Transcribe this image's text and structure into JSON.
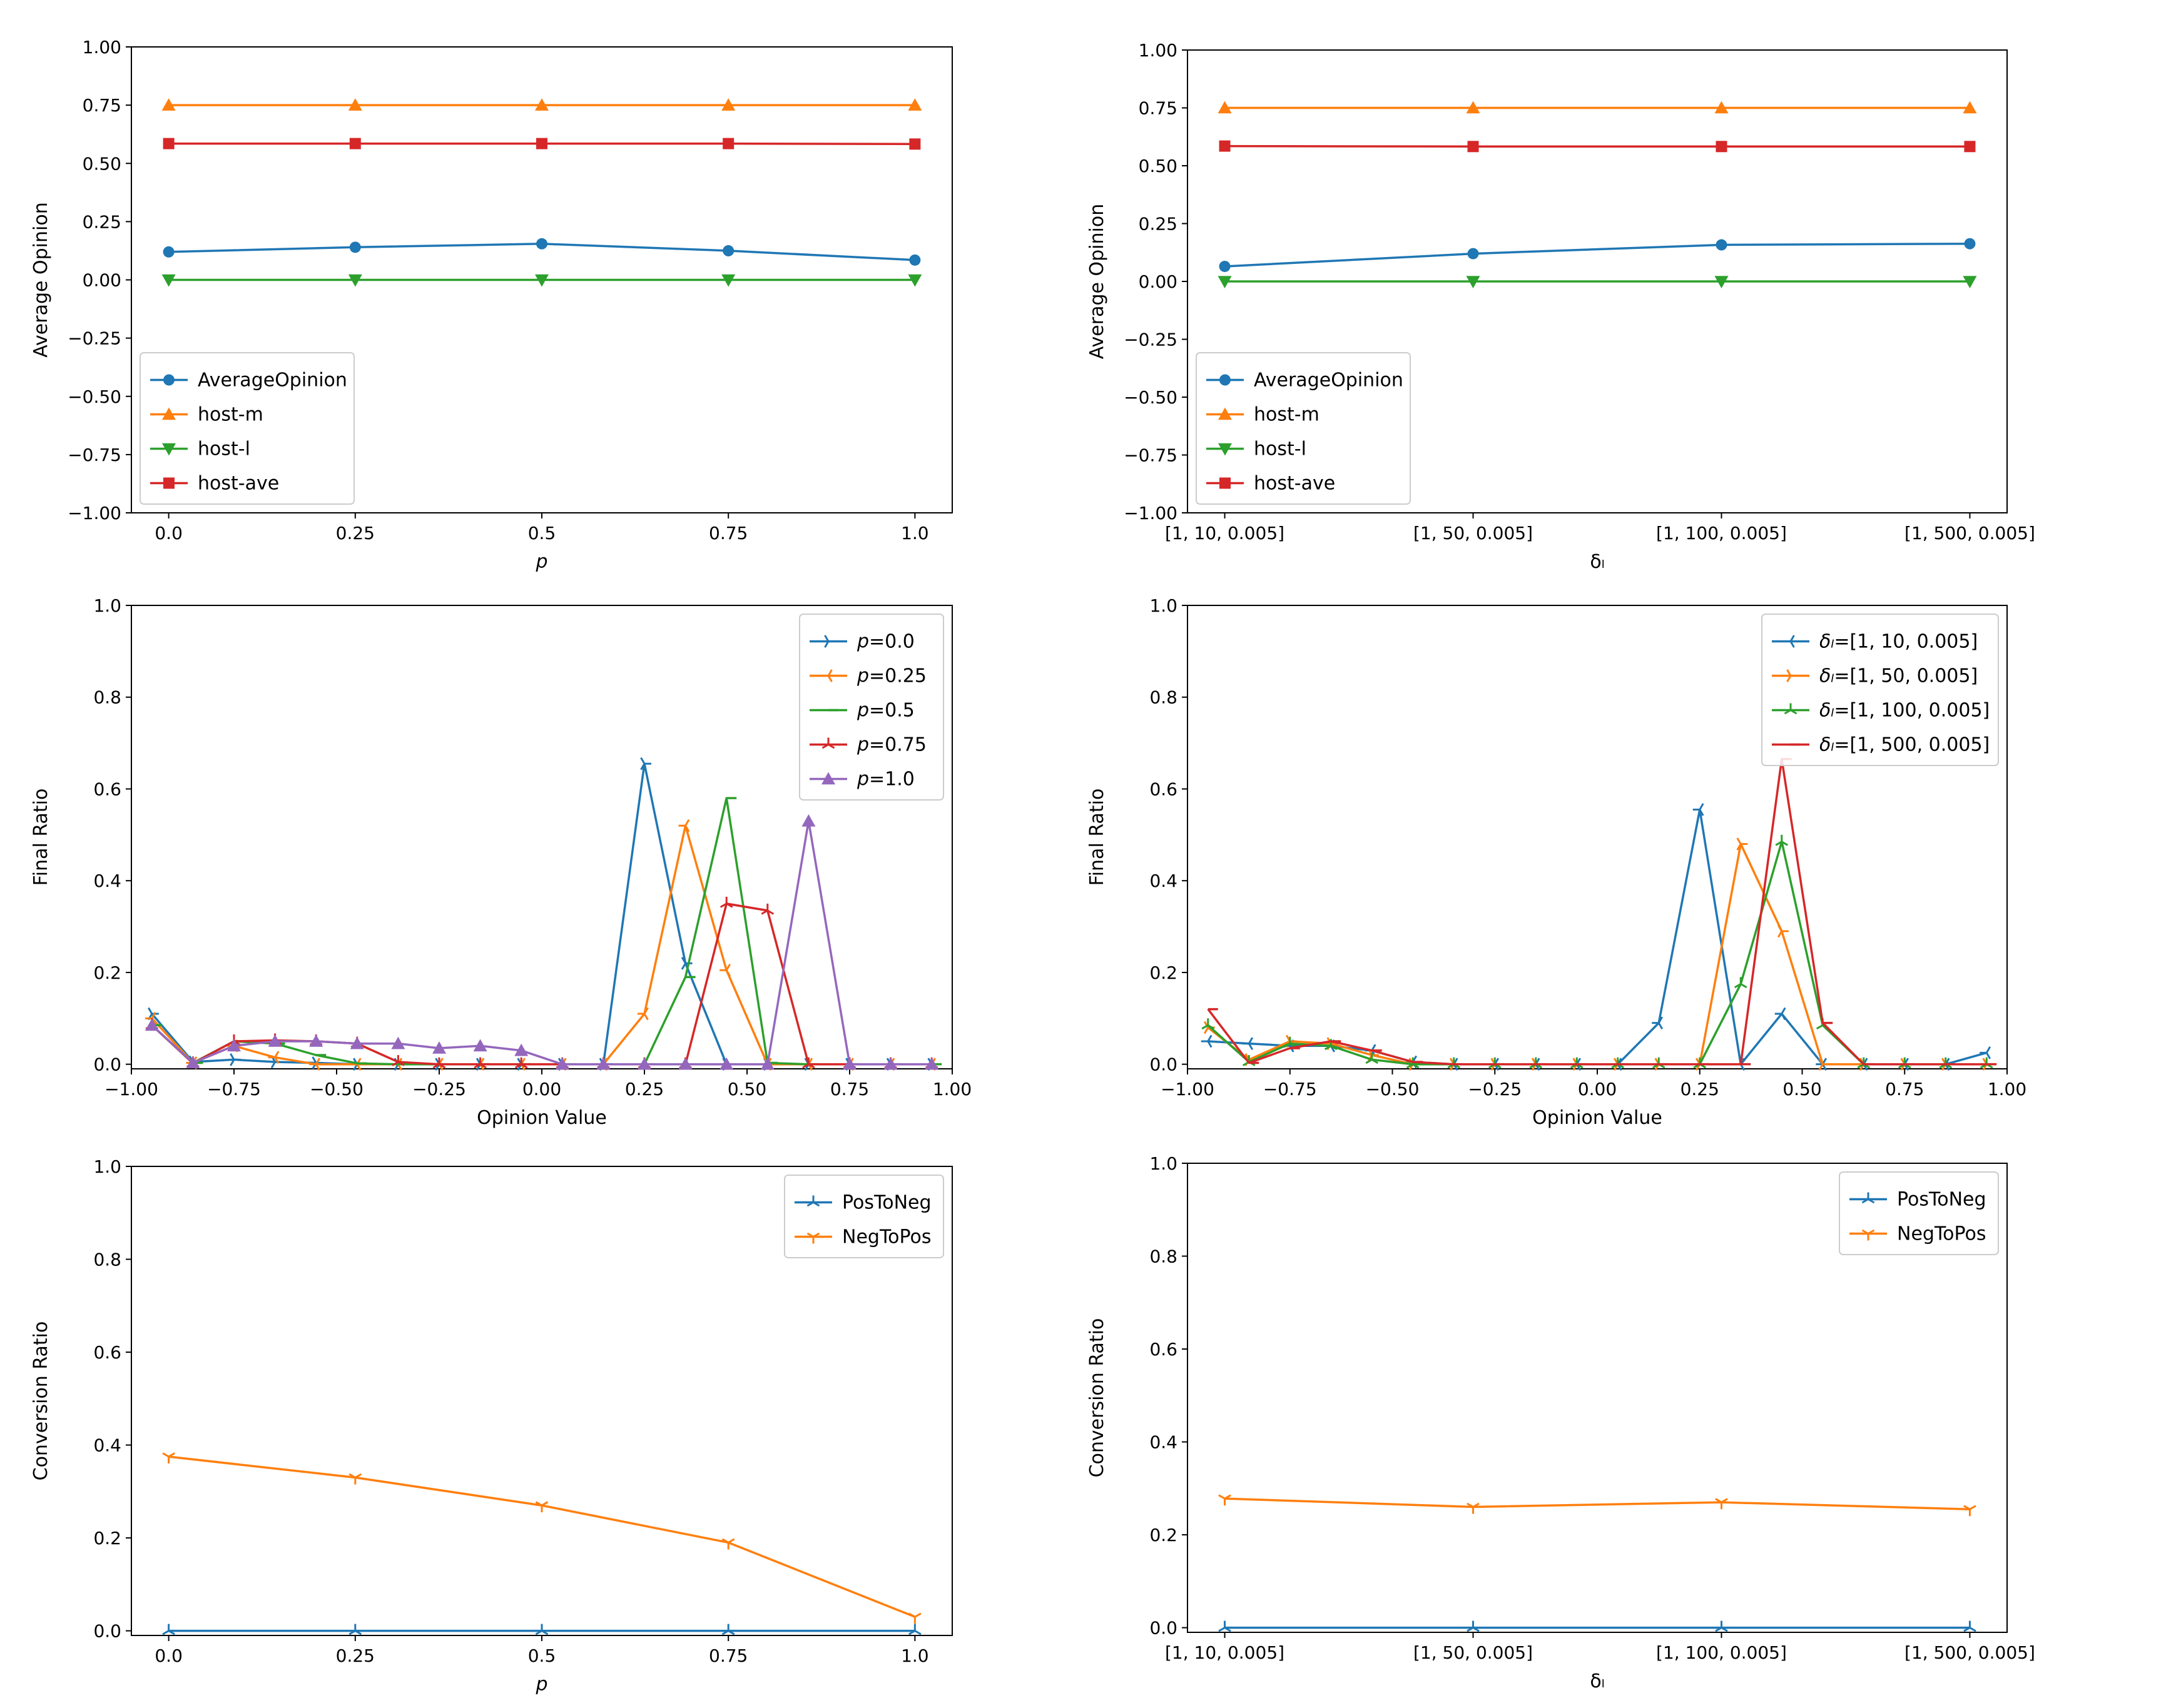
{
  "colors": {
    "blue": "#1f77b4",
    "orange": "#ff7f0e",
    "green": "#2ca02c",
    "red": "#d62728",
    "purple": "#9467bd"
  },
  "chart_data": [
    {
      "id": "avg-opinion-p",
      "type": "line",
      "xlabel": "p",
      "ylabel": "Average Opinion",
      "ylim": [
        -1.0,
        1.0
      ],
      "xlim": [
        -0.05,
        1.05
      ],
      "x_ticks": [
        0,
        0.25,
        0.5,
        0.75,
        1.0
      ],
      "x_tick_labels": [
        "0.0",
        "0.25",
        "0.5",
        "0.75",
        "1.0"
      ],
      "y_ticks": [
        -1.0,
        -0.75,
        -0.5,
        -0.25,
        0.0,
        0.25,
        0.5,
        0.75,
        1.0
      ],
      "y_tick_labels": [
        "−1.00",
        "−0.75",
        "−0.50",
        "−0.25",
        "0.00",
        "0.25",
        "0.50",
        "0.75",
        "1.00"
      ],
      "legend": "bottom-left",
      "x": [
        0,
        0.25,
        0.5,
        0.75,
        1.0
      ],
      "series": [
        {
          "name": "AverageOpinion",
          "color": "#1f77b4",
          "marker": "circle",
          "values": [
            0.12,
            0.14,
            0.155,
            0.125,
            0.085
          ]
        },
        {
          "name": "host-m",
          "color": "#ff7f0e",
          "marker": "triangle-up",
          "values": [
            0.75,
            0.75,
            0.75,
            0.75,
            0.75
          ]
        },
        {
          "name": "host-l",
          "color": "#2ca02c",
          "marker": "triangle-down",
          "values": [
            0.0,
            0.0,
            0.0,
            0.0,
            0.0
          ]
        },
        {
          "name": "host-ave",
          "color": "#d62728",
          "marker": "square",
          "values": [
            0.585,
            0.585,
            0.585,
            0.585,
            0.583
          ]
        }
      ]
    },
    {
      "id": "avg-opinion-delta",
      "type": "line",
      "xlabel": "δₗ",
      "ylabel": "Average Opinion",
      "ylim": [
        -1.0,
        1.0
      ],
      "xlim": [
        -0.15,
        3.15
      ],
      "x_ticks": [
        0,
        1,
        2,
        3
      ],
      "x_tick_labels": [
        "[1, 10, 0.005]",
        "[1, 50, 0.005]",
        "[1, 100, 0.005]",
        "[1, 500, 0.005]"
      ],
      "y_ticks": [
        -1.0,
        -0.75,
        -0.5,
        -0.25,
        0.0,
        0.25,
        0.5,
        0.75,
        1.0
      ],
      "y_tick_labels": [
        "−1.00",
        "−0.75",
        "−0.50",
        "−0.25",
        "0.00",
        "0.25",
        "0.50",
        "0.75",
        "1.00"
      ],
      "legend": "bottom-left",
      "x": [
        0,
        1,
        2,
        3
      ],
      "series": [
        {
          "name": "AverageOpinion",
          "color": "#1f77b4",
          "marker": "circle",
          "values": [
            0.065,
            0.12,
            0.158,
            0.163
          ]
        },
        {
          "name": "host-m",
          "color": "#ff7f0e",
          "marker": "triangle-up",
          "values": [
            0.75,
            0.75,
            0.75,
            0.75
          ]
        },
        {
          "name": "host-l",
          "color": "#2ca02c",
          "marker": "triangle-down",
          "values": [
            0.0,
            0.0,
            0.0,
            0.0
          ]
        },
        {
          "name": "host-ave",
          "color": "#d62728",
          "marker": "square",
          "values": [
            0.585,
            0.583,
            0.583,
            0.583
          ]
        }
      ]
    },
    {
      "id": "final-ratio-p",
      "type": "line",
      "xlabel": "Opinion Value",
      "ylabel": "Final Ratio",
      "ylim": [
        -0.01,
        1.0
      ],
      "xlim": [
        -1.0,
        1.0
      ],
      "x_ticks": [
        -1.0,
        -0.75,
        -0.5,
        -0.25,
        0.0,
        0.25,
        0.5,
        0.75,
        1.0
      ],
      "x_tick_labels": [
        "−1.00",
        "−0.75",
        "−0.50",
        "−0.25",
        "0.00",
        "0.25",
        "0.50",
        "0.75",
        "1.00"
      ],
      "y_ticks": [
        0.0,
        0.2,
        0.4,
        0.6,
        0.8,
        1.0
      ],
      "y_tick_labels": [
        "0.0",
        "0.2",
        "0.4",
        "0.6",
        "0.8",
        "1.0"
      ],
      "legend": "top-right",
      "x": [
        -0.95,
        -0.85,
        -0.75,
        -0.65,
        -0.55,
        -0.45,
        -0.35,
        -0.25,
        -0.15,
        -0.05,
        0.05,
        0.15,
        0.25,
        0.35,
        0.45,
        0.55,
        0.65,
        0.75,
        0.85,
        0.95
      ],
      "series": [
        {
          "name": "p=0.0",
          "legend_var": "p",
          "legend_rest": "=0.0",
          "color": "#1f77b4",
          "marker": "tri-right",
          "values": [
            0.11,
            0.005,
            0.01,
            0.005,
            0.003,
            0.0,
            0.0,
            0.0,
            0.0,
            0.0,
            0.0,
            0.0,
            0.655,
            0.22,
            0.0,
            0.0,
            0.0,
            0.0,
            0.0,
            0.0
          ]
        },
        {
          "name": "p=0.25",
          "legend_var": "p",
          "legend_rest": "=0.25",
          "color": "#ff7f0e",
          "marker": "tri-left",
          "values": [
            0.1,
            0.003,
            0.04,
            0.015,
            0.0,
            0.0,
            0.0,
            0.0,
            0.0,
            0.0,
            0.0,
            0.0,
            0.11,
            0.52,
            0.205,
            0.0,
            0.0,
            0.0,
            0.0,
            0.0
          ]
        },
        {
          "name": "p=0.5",
          "legend_var": "p",
          "legend_rest": "=0.5",
          "color": "#2ca02c",
          "marker": "tick-right",
          "values": [
            0.085,
            0.003,
            0.05,
            0.045,
            0.02,
            0.002,
            0.0,
            0.0,
            0.0,
            0.0,
            0.0,
            0.0,
            0.0,
            0.19,
            0.58,
            0.003,
            0.0,
            0.0,
            0.0,
            0.0
          ]
        },
        {
          "name": "p=0.75",
          "legend_var": "p",
          "legend_rest": "=0.75",
          "color": "#d62728",
          "marker": "tri-up",
          "values": [
            0.085,
            0.002,
            0.05,
            0.052,
            0.05,
            0.045,
            0.005,
            0.0,
            0.0,
            0.0,
            0.0,
            0.0,
            0.0,
            0.0,
            0.35,
            0.335,
            0.0,
            0.0,
            0.0,
            0.0
          ]
        },
        {
          "name": "p=1.0",
          "legend_var": "p",
          "legend_rest": "=1.0",
          "color": "#9467bd",
          "marker": "triangle-up",
          "values": [
            0.085,
            0.003,
            0.04,
            0.05,
            0.05,
            0.045,
            0.045,
            0.035,
            0.04,
            0.03,
            0.0,
            0.0,
            0.0,
            0.0,
            0.0,
            0.0,
            0.53,
            0.0,
            0.0,
            0.0
          ]
        }
      ]
    },
    {
      "id": "final-ratio-delta",
      "type": "line",
      "xlabel": "Opinion Value",
      "ylabel": "Final Ratio",
      "ylim": [
        -0.01,
        1.0
      ],
      "xlim": [
        -1.0,
        1.0
      ],
      "x_ticks": [
        -1.0,
        -0.75,
        -0.5,
        -0.25,
        0.0,
        0.25,
        0.5,
        0.75,
        1.0
      ],
      "x_tick_labels": [
        "−1.00",
        "−0.75",
        "−0.50",
        "−0.25",
        "0.00",
        "0.25",
        "0.50",
        "0.75",
        "1.00"
      ],
      "y_ticks": [
        0.0,
        0.2,
        0.4,
        0.6,
        0.8,
        1.0
      ],
      "y_tick_labels": [
        "0.0",
        "0.2",
        "0.4",
        "0.6",
        "0.8",
        "1.0"
      ],
      "legend": "top-right",
      "x": [
        -0.95,
        -0.85,
        -0.75,
        -0.65,
        -0.55,
        -0.45,
        -0.35,
        -0.25,
        -0.15,
        -0.05,
        0.05,
        0.15,
        0.25,
        0.35,
        0.45,
        0.55,
        0.65,
        0.75,
        0.85,
        0.95
      ],
      "series": [
        {
          "name": "δₗ=[1, 10, 0.005]",
          "legend_var": "δₗ",
          "legend_rest": "=[1, 10, 0.005]",
          "color": "#1f77b4",
          "marker": "tri-left",
          "values": [
            0.05,
            0.045,
            0.04,
            0.04,
            0.03,
            0.005,
            0.0,
            0.0,
            0.0,
            0.0,
            0.0,
            0.09,
            0.555,
            0.0,
            0.11,
            0.0,
            0.0,
            0.0,
            0.0,
            0.025
          ]
        },
        {
          "name": "δₗ=[1, 50, 0.005]",
          "legend_var": "δₗ",
          "legend_rest": "=[1, 50, 0.005]",
          "color": "#ff7f0e",
          "marker": "tri-right",
          "values": [
            0.08,
            0.01,
            0.05,
            0.045,
            0.02,
            0.0,
            0.0,
            0.0,
            0.0,
            0.0,
            0.0,
            0.0,
            0.0,
            0.48,
            0.29,
            0.0,
            0.0,
            0.0,
            0.0,
            0.0
          ]
        },
        {
          "name": "δₗ=[1, 100, 0.005]",
          "legend_var": "δₗ",
          "legend_rest": "=[1, 100, 0.005]",
          "color": "#2ca02c",
          "marker": "tri-up",
          "values": [
            0.085,
            0.005,
            0.045,
            0.04,
            0.01,
            0.0,
            0.0,
            0.0,
            0.0,
            0.0,
            0.0,
            0.0,
            0.0,
            0.175,
            0.485,
            0.085,
            0.0,
            0.0,
            0.0,
            0.0
          ]
        },
        {
          "name": "δₗ=[1, 500, 0.005]",
          "legend_var": "δₗ",
          "legend_rest": "=[1, 500, 0.005]",
          "color": "#d62728",
          "marker": "tick-right",
          "values": [
            0.12,
            0.003,
            0.035,
            0.05,
            0.03,
            0.005,
            0.0,
            0.0,
            0.0,
            0.0,
            0.0,
            0.0,
            0.0,
            0.0,
            0.665,
            0.09,
            0.0,
            0.0,
            0.0,
            0.0
          ]
        }
      ]
    },
    {
      "id": "conversion-p",
      "type": "line",
      "xlabel": "p",
      "ylabel": "Conversion Ratio",
      "ylim": [
        -0.01,
        1.0
      ],
      "xlim": [
        -0.05,
        1.05
      ],
      "x_ticks": [
        0,
        0.25,
        0.5,
        0.75,
        1.0
      ],
      "x_tick_labels": [
        "0.0",
        "0.25",
        "0.5",
        "0.75",
        "1.0"
      ],
      "y_ticks": [
        0.0,
        0.2,
        0.4,
        0.6,
        0.8,
        1.0
      ],
      "y_tick_labels": [
        "0.0",
        "0.2",
        "0.4",
        "0.6",
        "0.8",
        "1.0"
      ],
      "legend": "top-right",
      "x": [
        0,
        0.25,
        0.5,
        0.75,
        1.0
      ],
      "series": [
        {
          "name": "PosToNeg",
          "color": "#1f77b4",
          "marker": "tri-up",
          "values": [
            0.0,
            0.0,
            0.0,
            0.0,
            0.0
          ]
        },
        {
          "name": "NegToPos",
          "color": "#ff7f0e",
          "marker": "tri-down",
          "values": [
            0.375,
            0.33,
            0.27,
            0.19,
            0.03
          ]
        }
      ]
    },
    {
      "id": "conversion-delta",
      "type": "line",
      "xlabel": "δₗ",
      "ylabel": "Conversion Ratio",
      "ylim": [
        -0.01,
        1.0
      ],
      "xlim": [
        -0.15,
        3.15
      ],
      "x_ticks": [
        0,
        1,
        2,
        3
      ],
      "x_tick_labels": [
        "[1, 10, 0.005]",
        "[1, 50, 0.005]",
        "[1, 100, 0.005]",
        "[1, 500, 0.005]"
      ],
      "y_ticks": [
        0.0,
        0.2,
        0.4,
        0.6,
        0.8,
        1.0
      ],
      "y_tick_labels": [
        "0.0",
        "0.2",
        "0.4",
        "0.6",
        "0.8",
        "1.0"
      ],
      "legend": "top-right",
      "x": [
        0,
        1,
        2,
        3
      ],
      "series": [
        {
          "name": "PosToNeg",
          "color": "#1f77b4",
          "marker": "tri-up",
          "values": [
            0.0,
            0.0,
            0.0,
            0.0
          ]
        },
        {
          "name": "NegToPos",
          "color": "#ff7f0e",
          "marker": "tri-down",
          "values": [
            0.278,
            0.26,
            0.27,
            0.255
          ]
        }
      ]
    }
  ]
}
